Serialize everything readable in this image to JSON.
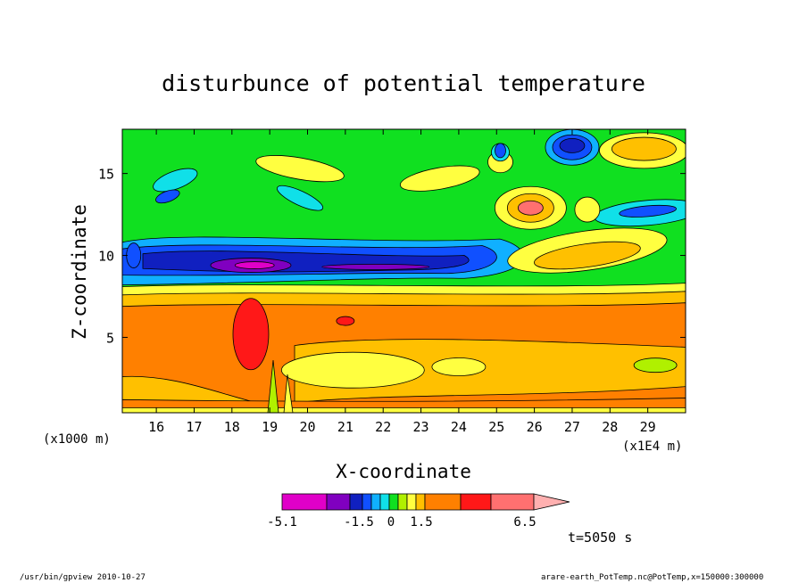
{
  "chart_data": {
    "type": "heatmap",
    "title": "disturbunce of potential temperature",
    "xlabel": "X-coordinate",
    "ylabel": "Z-coordinate",
    "x_unit_label": "(x1E4 m)",
    "y_unit_label": "(x1000 m)",
    "xlim": [
      15.1,
      30.0
    ],
    "ylim": [
      0.4,
      17.7
    ],
    "x_ticks": [
      16,
      17,
      18,
      19,
      20,
      21,
      22,
      23,
      24,
      25,
      26,
      27,
      28,
      29
    ],
    "y_ticks": [
      5,
      10,
      15
    ],
    "colorbar": {
      "levels": [
        "-5.1",
        "-1.5",
        "0",
        "1.5",
        "6.5"
      ],
      "colors": [
        "#e000c8",
        "#8000c0",
        "#1020c0",
        "#1050ff",
        "#10b0ff",
        "#10e0e8",
        "#10e020",
        "#b0f000",
        "#ffff40",
        "#ffc000",
        "#ff8000",
        "#ff1818",
        "#ff7070",
        "#ffb0b0"
      ]
    },
    "features": [
      {
        "kind": "negative-band",
        "x": [
          15.1,
          24.6
        ],
        "z": [
          8.3,
          10.7
        ],
        "min": -5.1
      },
      {
        "kind": "positive-layer",
        "x": [
          15.1,
          30.0
        ],
        "z": [
          0.4,
          8.0
        ],
        "max": 6.5
      },
      {
        "kind": "positive-cell",
        "x": [
          18.0,
          19.0
        ],
        "z": [
          3.4,
          6.9
        ],
        "max": 6.5
      },
      {
        "kind": "negative-cell",
        "x": [
          26.6,
          27.6
        ],
        "z": [
          15.8,
          17.3
        ],
        "min": -1.5
      },
      {
        "kind": "positive-cell",
        "x": [
          28.1,
          29.9
        ],
        "z": [
          15.6,
          17.4
        ],
        "max": 1.5
      }
    ]
  },
  "annotations": {
    "time": "t=5050 s",
    "footer_left": "/usr/bin/gpview   2010-10-27",
    "footer_right": "arare-earth_PotTemp.nc@PotTemp,x=150000:300000"
  }
}
